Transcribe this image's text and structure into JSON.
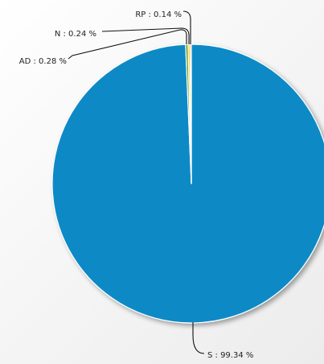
{
  "chart_data": {
    "type": "pie",
    "title": "",
    "slices": [
      {
        "key": "S",
        "label": "S : 99.34 %",
        "value": 99.34,
        "color": "#0b8ac6"
      },
      {
        "key": "AD",
        "label": "AD : 0.28 %",
        "value": 0.28,
        "color": "#6d9a2f"
      },
      {
        "key": "N",
        "label": "N : 0.24 %",
        "value": 0.24,
        "color": "#e6dc2c"
      },
      {
        "key": "RP",
        "label": "RP : 0.14 %",
        "value": 0.14,
        "color": "#d3562a"
      }
    ],
    "legend": "callout-labels",
    "grid": false
  }
}
